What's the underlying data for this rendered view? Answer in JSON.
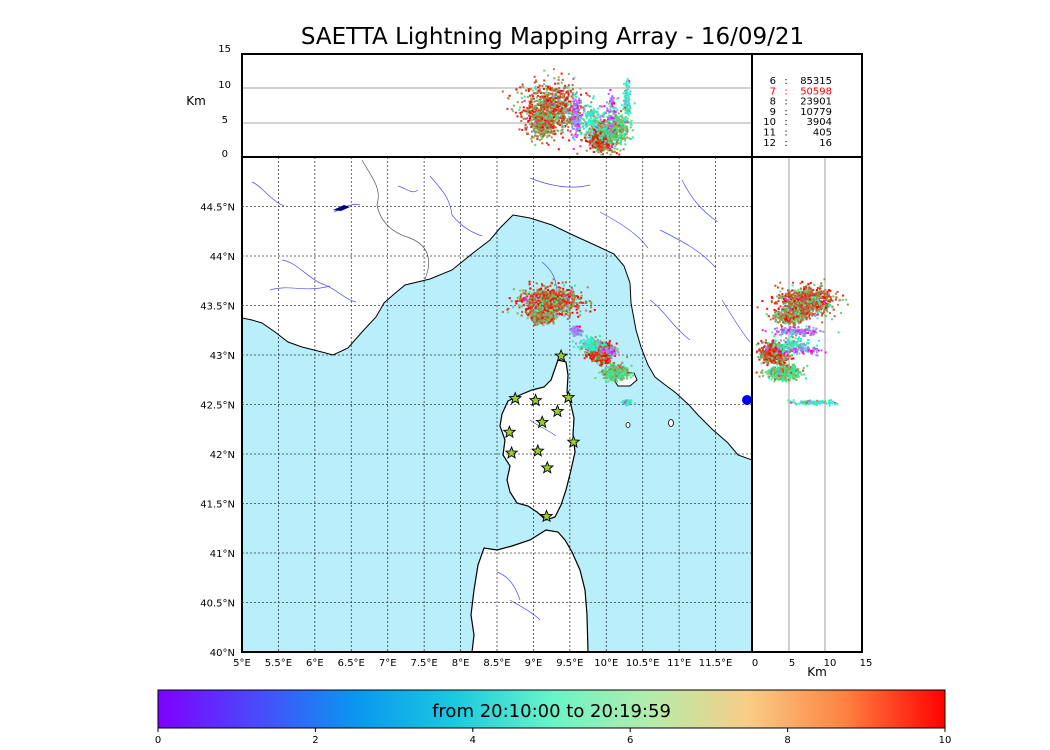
{
  "title": "SAETTA Lightning Mapping Array - 16/09/21",
  "chart_data": {
    "type": "scatter",
    "title": "SAETTA Lightning Mapping Array - 16/09/21",
    "map": {
      "lon_range": [
        5,
        12
      ],
      "lat_range": [
        40,
        45
      ],
      "lon_ticks": [
        "5°E",
        "5.5°E",
        "6°E",
        "6.5°E",
        "7°E",
        "7.5°E",
        "8°E",
        "8.5°E",
        "9°E",
        "9.5°E",
        "10°E",
        "10.5°E",
        "11°E",
        "11.5°E"
      ],
      "lat_ticks": [
        "40°N",
        "40.5°N",
        "41°N",
        "41.5°N",
        "42°N",
        "42.5°N",
        "43°N",
        "43.5°N",
        "44°N",
        "44.5°N"
      ],
      "grid": true,
      "sea_color": "#b9eefb",
      "land_color": "#ffffff"
    },
    "altitude_panel": {
      "ylabel": "Km",
      "ylim": [
        0,
        15
      ],
      "yticks": [
        "0",
        "5",
        "10",
        "15"
      ]
    },
    "side_panel": {
      "xlabel": "Km",
      "xlim": [
        0,
        15
      ],
      "xticks": [
        "0",
        "5",
        "10",
        "15"
      ]
    },
    "station_counts": [
      {
        "stations": "6",
        "sep": ":",
        "count": "85315",
        "color": "#000000"
      },
      {
        "stations": "7",
        "sep": ":",
        "count": "50598",
        "color": "#ff0000"
      },
      {
        "stations": "8",
        "sep": ":",
        "count": "23901",
        "color": "#000000"
      },
      {
        "stations": "9",
        "sep": ":",
        "count": "10779",
        "color": "#000000"
      },
      {
        "stations": "10",
        "sep": ":",
        "count": "3904",
        "color": "#000000"
      },
      {
        "stations": "11",
        "sep": ":",
        "count": "405",
        "color": "#000000"
      },
      {
        "stations": "12",
        "sep": ":",
        "count": "16",
        "color": "#000000"
      }
    ],
    "stations": [
      [
        9.38,
        42.99
      ],
      [
        8.75,
        42.56
      ],
      [
        9.03,
        42.54
      ],
      [
        9.48,
        42.57
      ],
      [
        9.33,
        42.43
      ],
      [
        9.12,
        42.32
      ],
      [
        8.67,
        42.22
      ],
      [
        9.55,
        42.12
      ],
      [
        8.7,
        42.01
      ],
      [
        9.06,
        42.03
      ],
      [
        9.19,
        41.86
      ],
      [
        9.18,
        41.37
      ]
    ],
    "clusters": [
      {
        "lon": 9.23,
        "lat": 43.55,
        "rlon": 0.4,
        "rlat": 0.14,
        "alt": 7.2,
        "alt_spread": 3.5,
        "n": 900,
        "t": 0.87
      },
      {
        "lon": 9.11,
        "lat": 43.4,
        "rlon": 0.17,
        "rlat": 0.07,
        "alt": 5.0,
        "alt_spread": 2.0,
        "n": 280,
        "t": 0.82
      },
      {
        "lon": 9.93,
        "lat": 43.03,
        "rlon": 0.16,
        "rlat": 0.09,
        "alt": 3.0,
        "alt_spread": 1.8,
        "n": 650,
        "t": 0.89
      },
      {
        "lon": 10.12,
        "lat": 42.83,
        "rlon": 0.17,
        "rlat": 0.07,
        "alt": 4.2,
        "alt_spread": 2.2,
        "n": 380,
        "t": 0.7
      },
      {
        "lon": 9.58,
        "lat": 43.25,
        "rlon": 0.07,
        "rlat": 0.04,
        "alt": 6.0,
        "alt_spread": 3.0,
        "n": 140,
        "t": 0.15
      },
      {
        "lon": 9.78,
        "lat": 43.12,
        "rlon": 0.18,
        "rlat": 0.06,
        "alt": 5.5,
        "alt_spread": 2.5,
        "n": 140,
        "t": 0.45
      },
      {
        "lon": 10.27,
        "lat": 42.53,
        "rlon": 0.05,
        "rlat": 0.02,
        "alt": 8.0,
        "alt_spread": 2.5,
        "n": 110,
        "t": 0.4
      },
      {
        "lon": 10.04,
        "lat": 43.05,
        "rlon": 0.1,
        "rlat": 0.04,
        "alt": 7.0,
        "alt_spread": 2.5,
        "n": 70,
        "t": 0.12
      }
    ],
    "colorbar": {
      "label": "from 20:10:00 to 20:19:59",
      "range": [
        0,
        10
      ],
      "ticks": [
        "0",
        "2",
        "4",
        "6",
        "8",
        "10"
      ],
      "colormap": "rainbow"
    }
  }
}
